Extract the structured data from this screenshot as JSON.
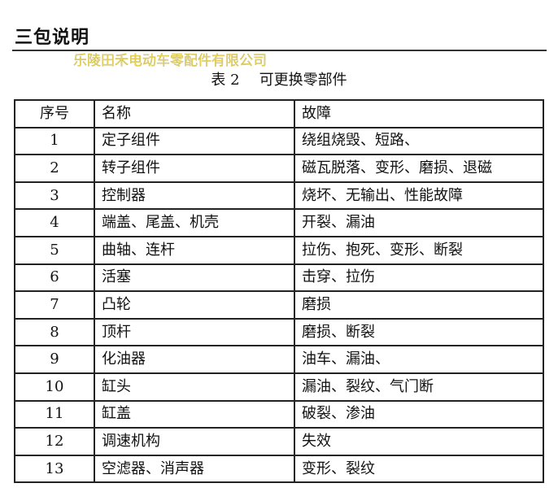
{
  "heading": "三包说明",
  "caption": {
    "number": "表 2",
    "title": "可更换零部件"
  },
  "table": {
    "headers": [
      "序号",
      "名称",
      "故障"
    ],
    "rows": [
      [
        "1",
        "定子组件",
        "绕组烧毁、短路、"
      ],
      [
        "2",
        "转子组件",
        "磁瓦脱落、变形、磨损、退磁"
      ],
      [
        "3",
        "控制器",
        "烧坏、无输出、性能故障"
      ],
      [
        "4",
        "端盖、尾盖、机壳",
        "开裂、漏油"
      ],
      [
        "5",
        "曲轴、连杆",
        "拉伤、抱死、变形、断裂"
      ],
      [
        "6",
        "活塞",
        "击穿、拉伤"
      ],
      [
        "7",
        "凸轮",
        "磨损"
      ],
      [
        "8",
        "顶杆",
        "磨损、断裂"
      ],
      [
        "9",
        "化油器",
        "油车、漏油、"
      ],
      [
        "10",
        "缸头",
        "漏油、裂纹、气门断"
      ],
      [
        "11",
        "缸盖",
        "破裂、渗油"
      ],
      [
        "12",
        "调速机构",
        "失效"
      ],
      [
        "13",
        "空滤器、消声器",
        "变形、裂纹"
      ]
    ]
  },
  "watermark": "乐陵田禾电动车零配件有限公司"
}
